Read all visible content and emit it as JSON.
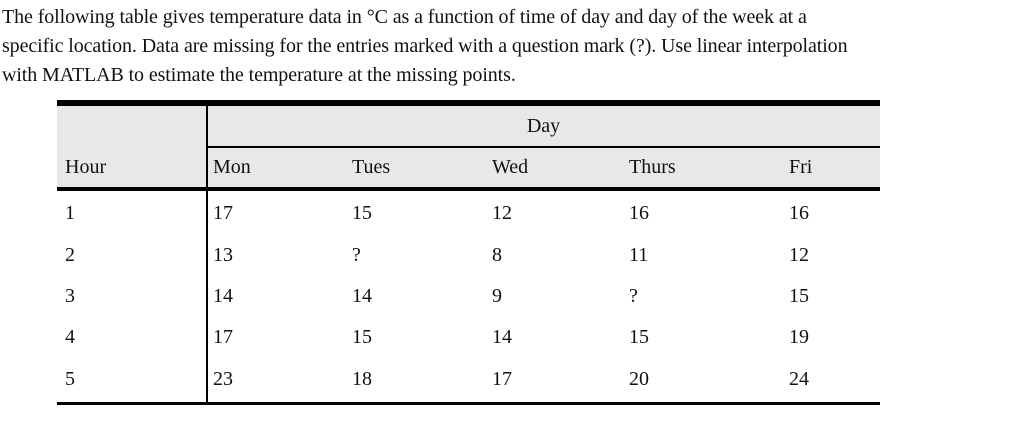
{
  "paragraph": {
    "lines": [
      "The following table gives temperature data in °C as a function of time of day and day of the week at a",
      "specific location. Data are missing for the entries marked with a question mark (?). Use linear interpolation",
      "with MATLAB to estimate the temperature at the missing points."
    ]
  },
  "table": {
    "day_group_header": "Day",
    "hour_header": "Hour",
    "day_headers": [
      "Mon",
      "Tues",
      "Wed",
      "Thurs",
      "Fri"
    ],
    "rows": [
      {
        "hour": "1",
        "values": [
          "17",
          "15",
          "12",
          "16",
          "16"
        ]
      },
      {
        "hour": "2",
        "values": [
          "13",
          "?",
          "8",
          "11",
          "12"
        ]
      },
      {
        "hour": "3",
        "values": [
          "14",
          "14",
          "9",
          "?",
          "15"
        ]
      },
      {
        "hour": "4",
        "values": [
          "17",
          "15",
          "14",
          "15",
          "19"
        ]
      },
      {
        "hour": "5",
        "values": [
          "23",
          "18",
          "17",
          "20",
          "24"
        ]
      }
    ],
    "missing_marker": "?"
  },
  "colors": {
    "header_bg": "#e8e8e8",
    "border": "#000000",
    "text": "#111111",
    "page_bg": "#ffffff"
  }
}
